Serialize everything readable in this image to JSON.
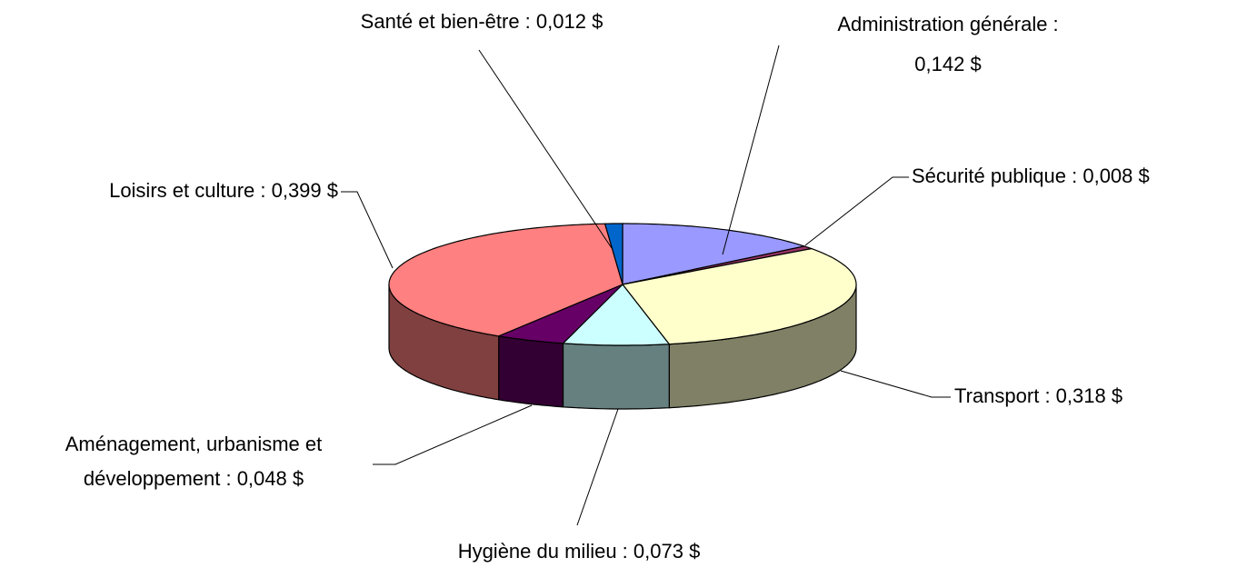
{
  "chart_data": {
    "type": "pie3d",
    "values": [
      0.142,
      0.008,
      0.318,
      0.073,
      0.048,
      0.399,
      0.012
    ],
    "value_labels": [
      [
        "Administration générale :",
        "0,142 $"
      ],
      [
        "Sécurité publique : 0,008 $"
      ],
      [
        "Transport : 0,318 $"
      ],
      [
        "Hygiène du milieu : 0,073 $"
      ],
      [
        "Aménagement, urbanisme et",
        "développement : 0,048 $"
      ],
      [
        "Loisirs et culture : 0,399 $"
      ],
      [
        "Santé et bien-être : 0,012 $"
      ]
    ],
    "colors": [
      "#9999ff",
      "#993366",
      "#ffffcc",
      "#ccffff",
      "#660066",
      "#ff8080",
      "#0066cc"
    ]
  }
}
